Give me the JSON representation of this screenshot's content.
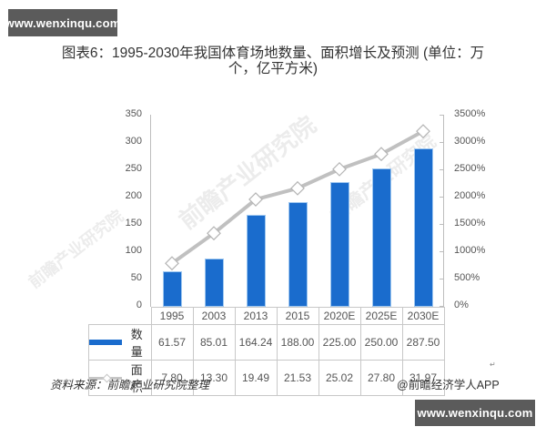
{
  "watermark": {
    "top": "www.wenxinqu.com",
    "bottom": "www.wenxinqu.com",
    "ghost": "前瞻产业研究院"
  },
  "title": {
    "line1": "图表6：1995-2030年我国体育场地数量、面积增长及预测 (单位：万",
    "line2": "个，亿平方米)"
  },
  "axes": {
    "left_ticks": [
      "350",
      "300",
      "250",
      "200",
      "150",
      "100",
      "50",
      "0"
    ],
    "right_ticks": [
      "3500%",
      "3000%",
      "2500%",
      "2000%",
      "1500%",
      "1000%",
      "500%",
      "0%"
    ]
  },
  "table": {
    "categories": [
      "1995",
      "2003",
      "2013",
      "2015",
      "2020E",
      "2025E",
      "2030E"
    ],
    "rows": [
      {
        "label": "数量",
        "values": [
          "61.57",
          "85.01",
          "164.24",
          "188.00",
          "225.00",
          "250.00",
          "287.50"
        ]
      },
      {
        "label": "面积",
        "values": [
          "7.80",
          "13.30",
          "19.49",
          "21.53",
          "25.02",
          "27.80",
          "31.97"
        ]
      }
    ]
  },
  "footer": {
    "source": "资料来源：前瞻产业研究院整理",
    "credit": "@前瞻经济学人APP",
    "mark": "↵"
  },
  "colors": {
    "bar": "#1a6ccd",
    "line": "#c0c0c0",
    "axis": "#bdbdbd"
  },
  "chart_data": {
    "type": "bar",
    "title": "图表6：1995-2030年我国体育场地数量、面积增长及预测 (单位：万个，亿平方米)",
    "categories": [
      "1995",
      "2003",
      "2013",
      "2015",
      "2020E",
      "2025E",
      "2030E"
    ],
    "series": [
      {
        "name": "数量",
        "type": "bar",
        "axis": "left",
        "values": [
          61.57,
          85.01,
          164.24,
          188.0,
          225.0,
          250.0,
          287.5
        ]
      },
      {
        "name": "面积",
        "type": "line",
        "axis": "right",
        "values": [
          7.8,
          13.3,
          19.49,
          21.53,
          25.02,
          27.8,
          31.97
        ],
        "plotted_as_percent": [
          780,
          1330,
          1949,
          2153,
          2502,
          2780,
          3197
        ]
      }
    ],
    "xlabel": "",
    "ylabel": "",
    "ylim": [
      0,
      350
    ],
    "y2lim": [
      0,
      3500
    ],
    "y_ticks": [
      0,
      50,
      100,
      150,
      200,
      250,
      300,
      350
    ],
    "y2_ticks": [
      "0%",
      "500%",
      "1000%",
      "1500%",
      "2000%",
      "2500%",
      "3000%",
      "3500%"
    ],
    "legend_position": "data-table",
    "grid": false
  }
}
